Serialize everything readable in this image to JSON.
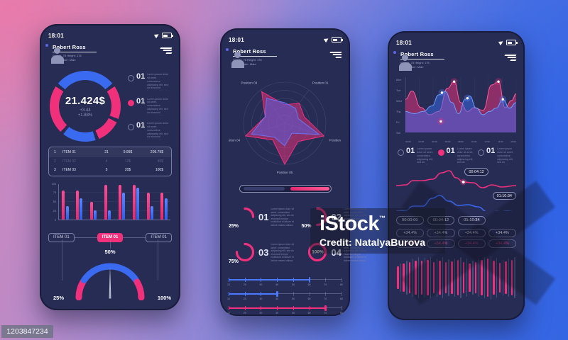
{
  "colors": {
    "pink": "#f1307c",
    "blue": "#3a6af0",
    "screen": "#272c54",
    "muted": "#8b90b5"
  },
  "shared": {
    "lorem": "Lorem ipsum dolor sit amet, consectetur adipiscing elit, sed do eiusmod tempor incididunt ut labore et dolore magna aliqua."
  },
  "watermark": {
    "brand": "iStock",
    "tm": "™",
    "credit": "Credit: NatalyaBurova",
    "asset_id": "1203847234"
  },
  "phone1": {
    "status_time": "18:01",
    "profile": {
      "name": "Robert Ross",
      "line1": "Weight: 75   Height: 178",
      "line2": "Your gender: Male"
    },
    "donut": {
      "value": "21.424$",
      "delta1": "+3.44",
      "delta2": "+1.88%",
      "segments": [
        {
          "color": "blue",
          "deg": 100
        },
        {
          "color": "gap",
          "deg": 6
        },
        {
          "color": "pink",
          "deg": 55
        },
        {
          "color": "gap",
          "deg": 6
        },
        {
          "color": "pink",
          "deg": 40
        },
        {
          "color": "gap",
          "deg": 6
        },
        {
          "color": "blue",
          "deg": 55
        },
        {
          "color": "gap",
          "deg": 6
        },
        {
          "color": "pink",
          "deg": 80
        },
        {
          "color": "gap",
          "deg": 6
        }
      ]
    },
    "side_items": [
      {
        "num": "01",
        "selected": false
      },
      {
        "num": "01",
        "selected": true
      },
      {
        "num": "01",
        "selected": false
      }
    ],
    "table_rows": [
      {
        "idx": "1",
        "name": "ITEM 01",
        "qty": "21",
        "price": "9.99$",
        "total": "209.79$",
        "faded": false
      },
      {
        "idx": "2",
        "name": "ITEM 02",
        "qty": "4",
        "price": "12$",
        "total": "48$",
        "faded": true
      },
      {
        "idx": "3",
        "name": "ITEM 03",
        "qty": "5",
        "price": "20$",
        "total": "100$",
        "faded": false
      }
    ],
    "bar_chart": {
      "y_ticks": [
        "100",
        "75",
        "50",
        "25",
        "0"
      ],
      "groups": [
        [
          82,
          37
        ],
        [
          82,
          60
        ],
        [
          50,
          25
        ],
        [
          97,
          25
        ],
        [
          97,
          75
        ],
        [
          97,
          90
        ],
        [
          75,
          37
        ],
        [
          75,
          60
        ]
      ]
    },
    "tabs": [
      {
        "label": "ITEM 01",
        "active": false
      },
      {
        "label": "ITEM 01",
        "active": true
      },
      {
        "label": "ITEM 01",
        "active": false
      }
    ],
    "gauge": {
      "top_label": "50%",
      "left_label": "25%",
      "right_label": "100%"
    }
  },
  "phone2": {
    "status_time": "18:01",
    "profile": {
      "name": "Robert Ross",
      "line1": "Weight: 75   Height: 178",
      "line2": "Your gender: Male"
    },
    "radar": {
      "labels": [
        "Position 01",
        "Position 02",
        "Position 05",
        "Position 04",
        "Position 03"
      ],
      "pink_axes": [
        0.6,
        1.0,
        1.0,
        1.0,
        0.95
      ],
      "pink_inner": [
        0.5,
        0.55,
        0.5,
        0.5,
        0.45
      ],
      "blue_axes": [
        0.45,
        0.88,
        0.55,
        0.85,
        0.75
      ],
      "blue_inner": [
        0.35,
        0.3,
        0.42,
        0.5,
        0.5
      ]
    },
    "rings": [
      {
        "pct": "25%",
        "num": "01",
        "value": 25,
        "inside": false
      },
      {
        "pct": "50%",
        "num": "02",
        "value": 50,
        "inside": false
      },
      {
        "pct": "75%",
        "num": "03",
        "value": 75,
        "inside": false
      },
      {
        "pct": "100%",
        "num": "04",
        "value": 100,
        "inside": true
      }
    ],
    "sliders": {
      "tick_labels": [
        "10",
        "20",
        "30",
        "40",
        "50",
        "60",
        "70",
        "80"
      ],
      "min": 10,
      "max": 80,
      "items": [
        {
          "color": "blue",
          "value": 60
        },
        {
          "color": "blue",
          "value": 40
        },
        {
          "color": "pink",
          "value": 70
        }
      ]
    }
  },
  "phone3": {
    "status_time": "18:01",
    "profile": {
      "name": "Robert Ross",
      "line1": "Weight: 75   Height: 178",
      "line2": "Your gender: Male"
    },
    "wave": {
      "y_labels": [
        "Mon",
        "Tue",
        "Wed",
        "Thu",
        "Fri",
        "Sat"
      ],
      "x_labels": [
        "00:00",
        "02:00",
        "04:00",
        "06:00",
        "08:00",
        "10:00",
        "12:00",
        "14:00",
        "16:00"
      ],
      "pink_points": [
        [
          0,
          40
        ],
        [
          6,
          25
        ],
        [
          14,
          55
        ],
        [
          22,
          68
        ],
        [
          30,
          62
        ],
        [
          38,
          20
        ],
        [
          44,
          8
        ],
        [
          50,
          46
        ],
        [
          56,
          62
        ],
        [
          62,
          55
        ],
        [
          70,
          60
        ],
        [
          78,
          14
        ],
        [
          84,
          8
        ],
        [
          90,
          55
        ],
        [
          96,
          42
        ],
        [
          100,
          30
        ]
      ],
      "blue_points": [
        [
          0,
          62
        ],
        [
          8,
          66
        ],
        [
          16,
          62
        ],
        [
          24,
          52
        ],
        [
          30,
          32
        ],
        [
          36,
          26
        ],
        [
          42,
          46
        ],
        [
          48,
          66
        ],
        [
          54,
          40
        ],
        [
          58,
          34
        ],
        [
          64,
          56
        ],
        [
          70,
          68
        ],
        [
          76,
          62
        ],
        [
          82,
          56
        ],
        [
          88,
          40
        ],
        [
          94,
          56
        ],
        [
          100,
          46
        ]
      ],
      "pink_dots": [
        [
          44,
          8
        ],
        [
          84,
          8
        ],
        [
          32,
          80
        ]
      ],
      "blue_dots": [
        [
          33,
          28
        ],
        [
          56,
          38
        ],
        [
          88,
          40
        ]
      ]
    },
    "h_items": [
      {
        "num": "01",
        "selected": false
      },
      {
        "num": "01",
        "selected": true
      },
      {
        "num": "01",
        "selected": false
      }
    ],
    "lines": [
      {
        "color": "pink",
        "badge": "00:04:12",
        "points": [
          [
            0,
            26
          ],
          [
            8,
            25
          ],
          [
            14,
            19
          ],
          [
            22,
            19
          ],
          [
            30,
            17
          ],
          [
            38,
            8
          ],
          [
            44,
            5
          ],
          [
            50,
            15
          ],
          [
            56,
            21
          ],
          [
            64,
            22
          ],
          [
            72,
            29
          ],
          [
            80,
            25
          ],
          [
            88,
            28
          ],
          [
            100,
            26
          ]
        ],
        "dot": [
          56,
          21
        ]
      },
      {
        "color": "blue",
        "badge": "01:10:34",
        "points": [
          [
            0,
            30
          ],
          [
            8,
            29
          ],
          [
            14,
            23
          ],
          [
            22,
            23
          ],
          [
            30,
            12
          ],
          [
            36,
            8
          ],
          [
            44,
            16
          ],
          [
            52,
            22
          ],
          [
            60,
            21
          ],
          [
            68,
            24
          ],
          [
            76,
            31
          ],
          [
            84,
            33
          ],
          [
            92,
            30
          ],
          [
            100,
            31
          ]
        ],
        "dot": [
          84,
          33
        ]
      }
    ],
    "time_badges": [
      "00:00:00",
      "00:04:12",
      "01:10:34"
    ],
    "pct_rows": [
      {
        "tone": "white",
        "values": [
          "+34.4%",
          "+34.4%",
          "+34.4%",
          "+34.4%"
        ]
      },
      {
        "tone": "pink",
        "values": [
          "+34.4%",
          "+34.4%",
          "+34.4%",
          "+34.4%"
        ]
      }
    ],
    "waveform": {
      "pink": [
        46,
        58,
        66,
        72,
        70,
        74,
        66,
        72,
        64,
        68,
        74,
        66,
        60,
        66,
        74,
        78,
        70,
        62,
        68,
        74
      ],
      "gray": [
        60,
        72,
        80,
        84,
        82,
        86,
        80,
        84,
        76,
        80,
        86,
        80,
        72,
        80,
        86,
        90,
        82,
        74,
        80,
        86
      ]
    }
  }
}
